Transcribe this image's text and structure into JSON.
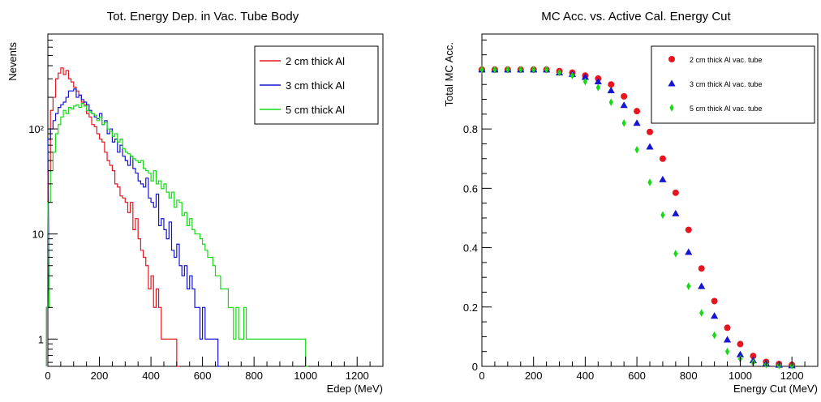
{
  "chart_data": [
    {
      "type": "histogram",
      "title": "Tot. Energy Dep. in Vac. Tube Body",
      "xlabel": "Edep (MeV)",
      "ylabel": "Nevents",
      "xlim": [
        0,
        1300
      ],
      "ylim": [
        0.55,
        800
      ],
      "yscale": "log",
      "grid": false,
      "legend_position": "top-right",
      "x_ticks": [
        0,
        200,
        400,
        600,
        800,
        1000,
        1200
      ],
      "y_ticks": [
        {
          "value": 1,
          "label": "1"
        },
        {
          "value": 10,
          "label": "10"
        },
        {
          "value": 100,
          "label": "10²"
        }
      ],
      "bin_width": 10,
      "series": [
        {
          "name": "2 cm thick Al",
          "color": "#e8141e",
          "points": [
            [
              0,
              2
            ],
            [
              5,
              40
            ],
            [
              15,
              150
            ],
            [
              25,
              200
            ],
            [
              35,
              300
            ],
            [
              45,
              340
            ],
            [
              55,
              380
            ],
            [
              65,
              330
            ],
            [
              75,
              360
            ],
            [
              85,
              300
            ],
            [
              95,
              280
            ],
            [
              105,
              250
            ],
            [
              115,
              230
            ],
            [
              125,
              210
            ],
            [
              135,
              180
            ],
            [
              145,
              170
            ],
            [
              155,
              140
            ],
            [
              165,
              130
            ],
            [
              175,
              110
            ],
            [
              185,
              105
            ],
            [
              195,
              90
            ],
            [
              205,
              80
            ],
            [
              215,
              75
            ],
            [
              225,
              60
            ],
            [
              235,
              50
            ],
            [
              245,
              45
            ],
            [
              255,
              40
            ],
            [
              265,
              30
            ],
            [
              275,
              28
            ],
            [
              285,
              23
            ],
            [
              295,
              22
            ],
            [
              305,
              20
            ],
            [
              315,
              16
            ],
            [
              325,
              20
            ],
            [
              335,
              11
            ],
            [
              345,
              14
            ],
            [
              355,
              9
            ],
            [
              365,
              7
            ],
            [
              375,
              6
            ],
            [
              385,
              5
            ],
            [
              395,
              3
            ],
            [
              405,
              4
            ],
            [
              415,
              2
            ],
            [
              425,
              3
            ],
            [
              435,
              2
            ],
            [
              445,
              1
            ],
            [
              455,
              1
            ],
            [
              465,
              1
            ],
            [
              475,
              1
            ],
            [
              485,
              1
            ],
            [
              495,
              1
            ],
            [
              505,
              0
            ]
          ]
        },
        {
          "name": "3 cm thick Al",
          "color": "#1414d2",
          "points": [
            [
              0,
              2
            ],
            [
              5,
              80
            ],
            [
              15,
              100
            ],
            [
              25,
              120
            ],
            [
              35,
              140
            ],
            [
              45,
              160
            ],
            [
              55,
              170
            ],
            [
              65,
              180
            ],
            [
              75,
              200
            ],
            [
              85,
              230
            ],
            [
              95,
              230
            ],
            [
              105,
              240
            ],
            [
              115,
              200
            ],
            [
              125,
              210
            ],
            [
              135,
              190
            ],
            [
              145,
              180
            ],
            [
              155,
              170
            ],
            [
              165,
              150
            ],
            [
              175,
              140
            ],
            [
              185,
              130
            ],
            [
              195,
              125
            ],
            [
              205,
              140
            ],
            [
              215,
              110
            ],
            [
              225,
              120
            ],
            [
              235,
              90
            ],
            [
              245,
              100
            ],
            [
              255,
              75
            ],
            [
              265,
              80
            ],
            [
              275,
              60
            ],
            [
              285,
              70
            ],
            [
              295,
              55
            ],
            [
              305,
              50
            ],
            [
              315,
              45
            ],
            [
              325,
              55
            ],
            [
              335,
              42
            ],
            [
              345,
              38
            ],
            [
              355,
              32
            ],
            [
              365,
              30
            ],
            [
              375,
              28
            ],
            [
              385,
              34
            ],
            [
              395,
              22
            ],
            [
              405,
              20
            ],
            [
              415,
              18
            ],
            [
              425,
              24
            ],
            [
              435,
              12
            ],
            [
              445,
              14
            ],
            [
              455,
              11
            ],
            [
              465,
              9
            ],
            [
              475,
              13
            ],
            [
              485,
              7
            ],
            [
              495,
              6
            ],
            [
              505,
              8
            ],
            [
              515,
              5
            ],
            [
              525,
              4
            ],
            [
              535,
              5
            ],
            [
              545,
              3
            ],
            [
              555,
              4
            ],
            [
              565,
              3
            ],
            [
              575,
              2
            ],
            [
              585,
              2
            ],
            [
              595,
              1
            ],
            [
              605,
              2
            ],
            [
              615,
              1
            ],
            [
              625,
              1
            ],
            [
              635,
              1
            ],
            [
              645,
              1
            ],
            [
              655,
              1
            ],
            [
              665,
              0
            ]
          ]
        },
        {
          "name": "5 cm thick Al",
          "color": "#14dc14",
          "points": [
            [
              0,
              2
            ],
            [
              5,
              20
            ],
            [
              15,
              40
            ],
            [
              25,
              60
            ],
            [
              35,
              90
            ],
            [
              45,
              110
            ],
            [
              55,
              130
            ],
            [
              65,
              150
            ],
            [
              75,
              140
            ],
            [
              85,
              160
            ],
            [
              95,
              155
            ],
            [
              105,
              165
            ],
            [
              115,
              170
            ],
            [
              125,
              160
            ],
            [
              135,
              175
            ],
            [
              145,
              165
            ],
            [
              155,
              150
            ],
            [
              165,
              145
            ],
            [
              175,
              140
            ],
            [
              185,
              135
            ],
            [
              195,
              120
            ],
            [
              205,
              130
            ],
            [
              215,
              110
            ],
            [
              225,
              115
            ],
            [
              235,
              100
            ],
            [
              245,
              95
            ],
            [
              255,
              85
            ],
            [
              265,
              90
            ],
            [
              275,
              75
            ],
            [
              285,
              80
            ],
            [
              295,
              65
            ],
            [
              305,
              60
            ],
            [
              315,
              58
            ],
            [
              325,
              55
            ],
            [
              335,
              52
            ],
            [
              345,
              50
            ],
            [
              355,
              48
            ],
            [
              365,
              50
            ],
            [
              375,
              42
            ],
            [
              385,
              40
            ],
            [
              395,
              38
            ],
            [
              405,
              32
            ],
            [
              415,
              40
            ],
            [
              425,
              30
            ],
            [
              435,
              32
            ],
            [
              445,
              27
            ],
            [
              455,
              30
            ],
            [
              465,
              25
            ],
            [
              475,
              22
            ],
            [
              485,
              25
            ],
            [
              495,
              18
            ],
            [
              505,
              21
            ],
            [
              515,
              20
            ],
            [
              525,
              15
            ],
            [
              535,
              16
            ],
            [
              545,
              12
            ],
            [
              555,
              14
            ],
            [
              565,
              11
            ],
            [
              575,
              10
            ],
            [
              585,
              10
            ],
            [
              595,
              9
            ],
            [
              605,
              8
            ],
            [
              615,
              7
            ],
            [
              625,
              6
            ],
            [
              635,
              6
            ],
            [
              645,
              5
            ],
            [
              655,
              4
            ],
            [
              665,
              4
            ],
            [
              675,
              3
            ],
            [
              685,
              3
            ],
            [
              695,
              3
            ],
            [
              705,
              2
            ],
            [
              715,
              2
            ],
            [
              725,
              1
            ],
            [
              735,
              2
            ],
            [
              745,
              1
            ],
            [
              755,
              1
            ],
            [
              765,
              2
            ],
            [
              775,
              1
            ],
            [
              785,
              1
            ],
            [
              795,
              1
            ],
            [
              805,
              1
            ],
            [
              815,
              1
            ],
            [
              825,
              1
            ],
            [
              835,
              1
            ],
            [
              845,
              1
            ],
            [
              855,
              1
            ],
            [
              865,
              1
            ],
            [
              875,
              1
            ],
            [
              885,
              1
            ],
            [
              895,
              1
            ],
            [
              905,
              1
            ],
            [
              915,
              1
            ],
            [
              925,
              1
            ],
            [
              935,
              1
            ],
            [
              945,
              1
            ],
            [
              955,
              1
            ],
            [
              965,
              1
            ],
            [
              975,
              1
            ],
            [
              985,
              1
            ],
            [
              995,
              1
            ],
            [
              1005,
              0
            ]
          ]
        }
      ]
    },
    {
      "type": "scatter",
      "title": "MC Acc. vs. Active Cal. Energy Cut",
      "xlabel": "Energy Cut (MeV)",
      "ylabel": "Total MC Acc.",
      "xlim": [
        0,
        1300
      ],
      "ylim": [
        0,
        1.12
      ],
      "grid": false,
      "legend_position": "top-right",
      "x_ticks": [
        0,
        200,
        400,
        600,
        800,
        1000,
        1200
      ],
      "y_ticks": [
        0,
        0.2,
        0.4,
        0.6,
        0.8
      ],
      "series": [
        {
          "name": "2 cm thick Al vac. tube",
          "color": "#e8141e",
          "marker": "circle",
          "x": [
            0,
            50,
            100,
            150,
            200,
            250,
            300,
            350,
            400,
            450,
            500,
            550,
            600,
            650,
            700,
            750,
            800,
            850,
            900,
            950,
            1000,
            1050,
            1100,
            1150,
            1200
          ],
          "y": [
            1.0,
            1.0,
            1.0,
            1.0,
            1.0,
            1.0,
            0.995,
            0.99,
            0.98,
            0.97,
            0.95,
            0.91,
            0.86,
            0.79,
            0.7,
            0.585,
            0.46,
            0.33,
            0.22,
            0.13,
            0.075,
            0.035,
            0.015,
            0.008,
            0.005
          ]
        },
        {
          "name": "3 cm thick Al vac. tube",
          "color": "#1414d2",
          "marker": "triangle",
          "x": [
            0,
            50,
            100,
            150,
            200,
            250,
            300,
            350,
            400,
            450,
            500,
            550,
            600,
            650,
            700,
            750,
            800,
            850,
            900,
            950,
            1000,
            1050,
            1100,
            1150,
            1200
          ],
          "y": [
            1.0,
            1.0,
            1.0,
            1.0,
            1.0,
            1.0,
            0.99,
            0.985,
            0.975,
            0.96,
            0.93,
            0.88,
            0.82,
            0.74,
            0.63,
            0.515,
            0.385,
            0.27,
            0.17,
            0.09,
            0.04,
            0.02,
            0.01,
            0.005,
            0.003
          ]
        },
        {
          "name": "5 cm thick Al vac. tube",
          "color": "#14dc14",
          "marker": "diamond",
          "x": [
            0,
            50,
            100,
            150,
            200,
            250,
            300,
            350,
            400,
            450,
            500,
            550,
            600,
            650,
            700,
            750,
            800,
            850,
            900,
            950,
            1000,
            1050,
            1100,
            1150,
            1200
          ],
          "y": [
            1.0,
            1.0,
            1.0,
            1.0,
            1.0,
            1.0,
            0.99,
            0.98,
            0.96,
            0.94,
            0.89,
            0.82,
            0.73,
            0.62,
            0.51,
            0.38,
            0.27,
            0.18,
            0.105,
            0.05,
            0.025,
            0.012,
            0.006,
            0.003,
            0.002
          ]
        }
      ]
    }
  ]
}
